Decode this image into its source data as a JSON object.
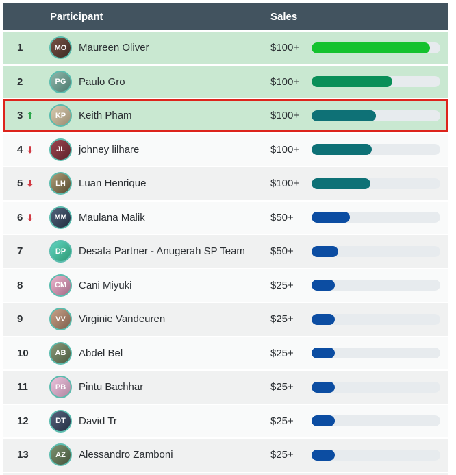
{
  "header": {
    "participant_label": "Participant",
    "sales_label": "Sales"
  },
  "icons": {
    "up_arrow": "⬆",
    "down_arrow": "⬇"
  },
  "colors": {
    "header_bg": "#42535f",
    "top3_row_bg": "#c9e8d1",
    "highlight_border": "#dd241c",
    "bar_track": "#e7ebee",
    "bar_green_bright": "#14c22e",
    "bar_green_dark": "#098f58",
    "bar_teal": "#0e7176",
    "bar_blue": "#0c4da2",
    "trend_up": "#2aa64a",
    "trend_down": "#d13a44"
  },
  "rows": [
    {
      "rank": "1",
      "trend": "none",
      "name": "Maureen Oliver",
      "initials": "MO",
      "sales": "$100+",
      "progress_pct": 92,
      "bar_color": "#14c22e",
      "band": "green",
      "highlighted": false,
      "avatar_colors": [
        "#7a5346",
        "#3d2a24"
      ]
    },
    {
      "rank": "2",
      "trend": "none",
      "name": "Paulo Gro",
      "initials": "PG",
      "sales": "$100+",
      "progress_pct": 63,
      "bar_color": "#098f58",
      "band": "green",
      "highlighted": false,
      "avatar_colors": [
        "#8fb8ac",
        "#4d7a6e"
      ]
    },
    {
      "rank": "3",
      "trend": "up",
      "name": "Keith Pham",
      "initials": "KP",
      "sales": "$100+",
      "progress_pct": 50,
      "bar_color": "#0e7176",
      "band": "green",
      "highlighted": true,
      "avatar_colors": [
        "#d9cbb0",
        "#9a8c72"
      ]
    },
    {
      "rank": "4",
      "trend": "down",
      "name": "johney lilhare",
      "initials": "JL",
      "sales": "$100+",
      "progress_pct": 47,
      "bar_color": "#0e7176",
      "band": "light",
      "highlighted": false,
      "avatar_colors": [
        "#9e4450",
        "#5d242c"
      ]
    },
    {
      "rank": "5",
      "trend": "down",
      "name": "Luan Henrique",
      "initials": "LH",
      "sales": "$100+",
      "progress_pct": 46,
      "bar_color": "#0e7176",
      "band": "gray",
      "highlighted": false,
      "avatar_colors": [
        "#b0a07a",
        "#55492f"
      ]
    },
    {
      "rank": "6",
      "trend": "down",
      "name": "Maulana Malik",
      "initials": "MM",
      "sales": "$50+",
      "progress_pct": 30,
      "bar_color": "#0c4da2",
      "band": "light",
      "highlighted": false,
      "avatar_colors": [
        "#53647c",
        "#222e40"
      ]
    },
    {
      "rank": "7",
      "trend": "none",
      "name": "Desafa Partner - Anugerah SP Team",
      "initials": "DP",
      "sales": "$50+",
      "progress_pct": 21,
      "bar_color": "#0c4da2",
      "band": "gray",
      "highlighted": false,
      "avatar_colors": [
        "#5fd4c0",
        "#2e9a74"
      ]
    },
    {
      "rank": "8",
      "trend": "none",
      "name": "Cani Miyuki",
      "initials": "CM",
      "sales": "$25+",
      "progress_pct": 18,
      "bar_color": "#0c4da2",
      "band": "light",
      "highlighted": false,
      "avatar_colors": [
        "#efb6cf",
        "#a06a85"
      ]
    },
    {
      "rank": "9",
      "trend": "none",
      "name": "Virginie Vandeuren",
      "initials": "VV",
      "sales": "$25+",
      "progress_pct": 18,
      "bar_color": "#0c4da2",
      "band": "gray",
      "highlighted": false,
      "avatar_colors": [
        "#c9a189",
        "#7e5f4c"
      ]
    },
    {
      "rank": "10",
      "trend": "none",
      "name": "Abdel Bel",
      "initials": "AB",
      "sales": "$25+",
      "progress_pct": 18,
      "bar_color": "#0c4da2",
      "band": "light",
      "highlighted": false,
      "avatar_colors": [
        "#8a9a79",
        "#4c5a40"
      ]
    },
    {
      "rank": "11",
      "trend": "none",
      "name": "Pintu Bachhar",
      "initials": "PB",
      "sales": "$25+",
      "progress_pct": 18,
      "bar_color": "#0c4da2",
      "band": "gray",
      "highlighted": false,
      "avatar_colors": [
        "#ecc3dc",
        "#b086a1"
      ]
    },
    {
      "rank": "12",
      "trend": "none",
      "name": "David Tr",
      "initials": "DT",
      "sales": "$25+",
      "progress_pct": 18,
      "bar_color": "#0c4da2",
      "band": "light",
      "highlighted": false,
      "avatar_colors": [
        "#56647e",
        "#252f42"
      ]
    },
    {
      "rank": "13",
      "trend": "none",
      "name": "Alessandro Zamboni",
      "initials": "AZ",
      "sales": "$25+",
      "progress_pct": 18,
      "bar_color": "#0c4da2",
      "band": "gray",
      "highlighted": false,
      "avatar_colors": [
        "#7d9370",
        "#45543c"
      ]
    }
  ]
}
